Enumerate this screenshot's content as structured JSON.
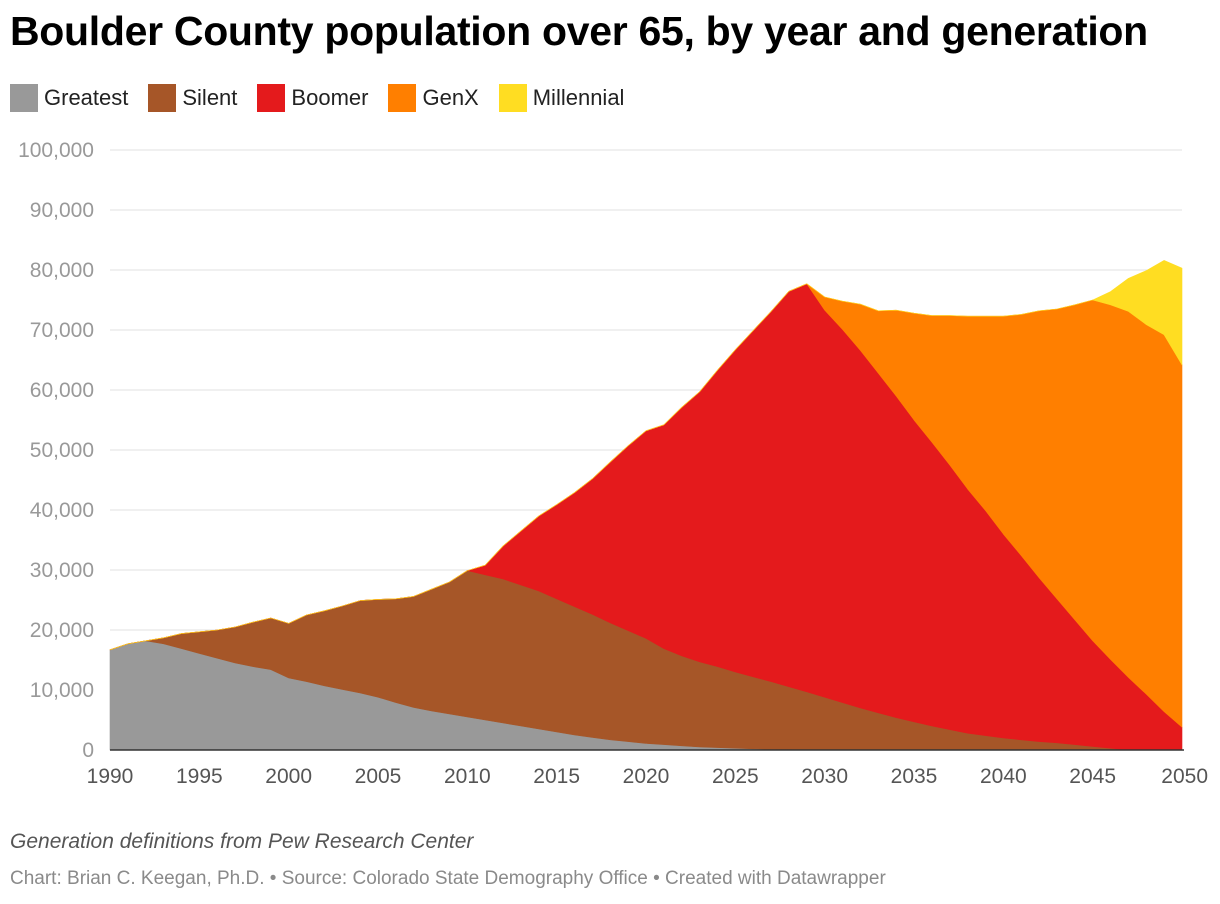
{
  "chart_data": {
    "type": "area",
    "stacked": true,
    "title": "Boulder County population over 65, by year and generation",
    "xlabel": "",
    "ylabel": "",
    "xlim": [
      1990,
      2050
    ],
    "ylim": [
      0,
      100000
    ],
    "grid": true,
    "legend_position": "top-left",
    "x_ticks": [
      "1990",
      "1995",
      "2000",
      "2005",
      "2010",
      "2015",
      "2020",
      "2025",
      "2030",
      "2035",
      "2040",
      "2045",
      "2050"
    ],
    "y_ticks": [
      "0",
      "10,000",
      "20,000",
      "30,000",
      "40,000",
      "50,000",
      "60,000",
      "70,000",
      "80,000",
      "90,000",
      "100,000"
    ],
    "x": [
      1990,
      1991,
      1992,
      1993,
      1994,
      1995,
      1996,
      1997,
      1998,
      1999,
      2000,
      2001,
      2002,
      2003,
      2004,
      2005,
      2006,
      2007,
      2008,
      2009,
      2010,
      2011,
      2012,
      2013,
      2014,
      2015,
      2016,
      2017,
      2018,
      2019,
      2020,
      2021,
      2022,
      2023,
      2024,
      2025,
      2026,
      2027,
      2028,
      2029,
      2030,
      2031,
      2032,
      2033,
      2034,
      2035,
      2036,
      2037,
      2038,
      2039,
      2040,
      2041,
      2042,
      2043,
      2044,
      2045,
      2046,
      2047,
      2048,
      2049,
      2050
    ],
    "series": [
      {
        "name": "Greatest",
        "color": "#999999",
        "values": [
          16700,
          17700,
          18200,
          17700,
          16900,
          16100,
          15300,
          14500,
          13900,
          13400,
          12000,
          11400,
          10700,
          10100,
          9500,
          8800,
          7900,
          7100,
          6500,
          6000,
          5500,
          5000,
          4500,
          4000,
          3500,
          3000,
          2500,
          2100,
          1700,
          1400,
          1100,
          900,
          700,
          500,
          400,
          300,
          200,
          100,
          50,
          0,
          0,
          0,
          0,
          0,
          0,
          0,
          0,
          0,
          0,
          0,
          0,
          0,
          0,
          0,
          0,
          0,
          0,
          0,
          0,
          0,
          0
        ]
      },
      {
        "name": "Silent",
        "color": "#a65628",
        "values": [
          0,
          0,
          0,
          1000,
          2500,
          3600,
          4700,
          6000,
          7400,
          8600,
          9100,
          11100,
          12500,
          13900,
          15400,
          16300,
          17300,
          18500,
          20300,
          22000,
          24400,
          24200,
          24000,
          23500,
          23000,
          22200,
          21400,
          20500,
          19500,
          18500,
          17500,
          16000,
          15000,
          14200,
          13500,
          12700,
          12000,
          11300,
          10500,
          9700,
          8800,
          7900,
          7000,
          6200,
          5400,
          4700,
          4000,
          3400,
          2800,
          2400,
          2000,
          1700,
          1400,
          1200,
          900,
          600,
          300,
          0,
          0,
          0,
          0
        ]
      },
      {
        "name": "Boomer",
        "color": "#e41a1c",
        "values": [
          0,
          0,
          0,
          0,
          0,
          0,
          0,
          0,
          0,
          0,
          0,
          0,
          0,
          0,
          0,
          0,
          0,
          0,
          0,
          0,
          0,
          1600,
          5500,
          9000,
          12500,
          15700,
          19000,
          22600,
          26800,
          30800,
          34600,
          37300,
          41400,
          45000,
          49400,
          53700,
          57700,
          61700,
          65900,
          68000,
          64500,
          62200,
          59600,
          56600,
          53600,
          50300,
          47300,
          44100,
          40700,
          37500,
          34000,
          30700,
          27300,
          24000,
          20800,
          17600,
          14800,
          12100,
          9300,
          6400,
          3800
        ]
      },
      {
        "name": "GenX",
        "color": "#ff7f00",
        "values": [
          0,
          0,
          0,
          0,
          0,
          0,
          0,
          0,
          0,
          0,
          0,
          0,
          0,
          0,
          0,
          0,
          0,
          0,
          0,
          0,
          0,
          0,
          0,
          0,
          0,
          0,
          0,
          0,
          0,
          0,
          0,
          0,
          0,
          0,
          0,
          0,
          0,
          0,
          0,
          0,
          2200,
          4700,
          7700,
          10400,
          14300,
          17800,
          21100,
          24900,
          28800,
          32400,
          36300,
          40200,
          44500,
          48300,
          52500,
          56800,
          59100,
          61000,
          61600,
          62800,
          60400
        ]
      },
      {
        "name": "Millennial",
        "color": "#ffdd22",
        "values": [
          0,
          0,
          0,
          0,
          0,
          0,
          0,
          0,
          0,
          0,
          0,
          0,
          0,
          0,
          0,
          0,
          0,
          0,
          0,
          0,
          0,
          0,
          0,
          0,
          0,
          0,
          0,
          0,
          0,
          0,
          0,
          0,
          0,
          0,
          0,
          0,
          0,
          0,
          0,
          0,
          0,
          0,
          0,
          0,
          0,
          0,
          0,
          0,
          0,
          0,
          0,
          0,
          0,
          0,
          0,
          0,
          2200,
          5500,
          9000,
          12400,
          16100
        ]
      }
    ]
  },
  "notes": {
    "definition": "Generation definitions from Pew Research Center",
    "credit": "Chart: Brian C. Keegan, Ph.D. • Source: Colorado State Demography Office • Created with Datawrapper"
  }
}
